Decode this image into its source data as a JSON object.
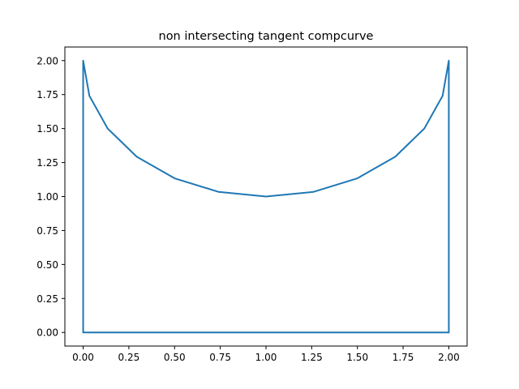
{
  "chart_data": {
    "type": "line",
    "title": "non intersecting tangent compcurve",
    "xlabel": "",
    "ylabel": "",
    "xlim": [
      -0.1,
      2.1
    ],
    "ylim": [
      -0.1,
      2.1
    ],
    "x_ticks": [
      0.0,
      0.25,
      0.5,
      0.75,
      1.0,
      1.25,
      1.5,
      1.75,
      2.0
    ],
    "x_tick_labels": [
      "0.00",
      "0.25",
      "0.50",
      "0.75",
      "1.00",
      "1.25",
      "1.50",
      "1.75",
      "2.00"
    ],
    "y_ticks": [
      0.0,
      0.25,
      0.5,
      0.75,
      1.0,
      1.25,
      1.5,
      1.75,
      2.0
    ],
    "y_tick_labels": [
      "0.00",
      "0.25",
      "0.50",
      "0.75",
      "1.00",
      "1.25",
      "1.50",
      "1.75",
      "2.00"
    ],
    "grid": false,
    "legend": "none",
    "series": [
      {
        "color": "#1f77b4",
        "x": [
          2.0,
          0.0,
          0.0,
          0.034,
          0.134,
          0.293,
          0.5,
          0.741,
          1.0,
          1.259,
          1.5,
          1.707,
          1.866,
          1.966,
          2.0,
          2.0
        ],
        "y": [
          0.0,
          0.0,
          2.0,
          1.741,
          1.5,
          1.293,
          1.134,
          1.034,
          1.0,
          1.034,
          1.134,
          1.293,
          1.5,
          1.741,
          2.0,
          0.0
        ]
      }
    ]
  }
}
